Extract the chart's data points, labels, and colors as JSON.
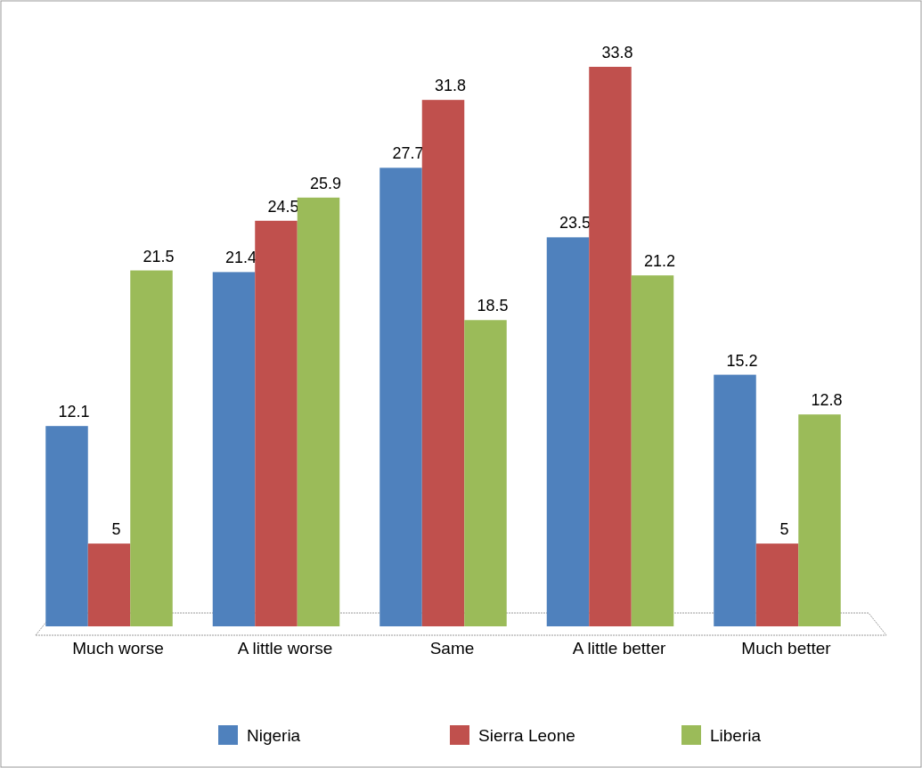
{
  "chart_data": {
    "type": "bar",
    "categories": [
      "Much worse",
      "A little worse",
      "Same",
      "A little better",
      "Much better"
    ],
    "series": [
      {
        "name": "Nigeria",
        "color": "#4f81bd",
        "values": [
          12.1,
          21.4,
          27.7,
          23.5,
          15.2
        ]
      },
      {
        "name": "Sierra Leone",
        "color": "#c0504d",
        "values": [
          5,
          24.5,
          31.8,
          33.8,
          5
        ]
      },
      {
        "name": "Liberia",
        "color": "#9bbb59",
        "values": [
          21.5,
          25.9,
          18.5,
          21.2,
          12.8
        ]
      }
    ],
    "data_labels": true,
    "legend": "bottom",
    "grid": false
  }
}
